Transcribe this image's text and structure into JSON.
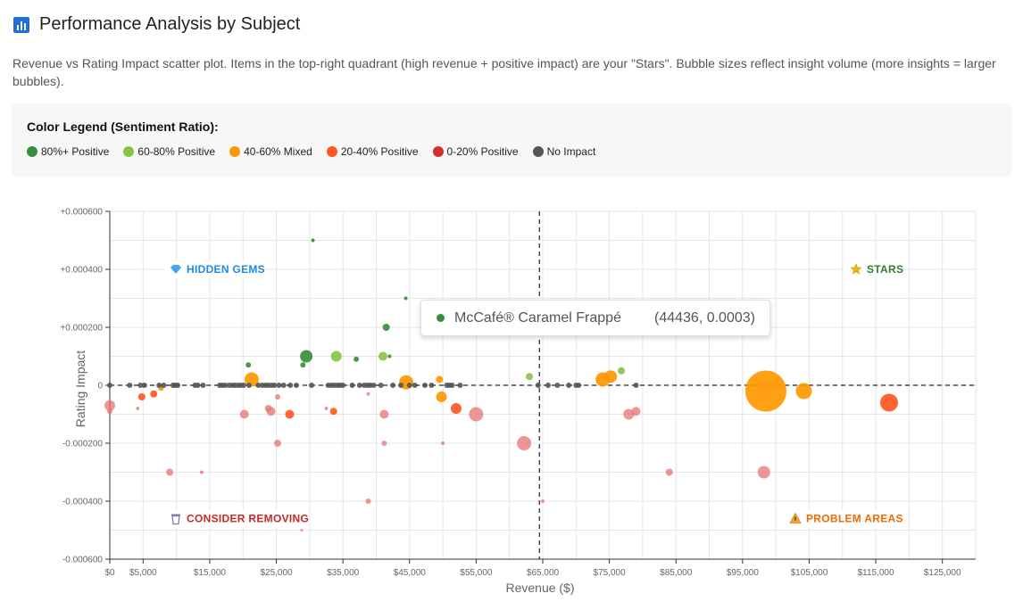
{
  "header": {
    "title": "Performance Analysis by Subject",
    "icon": "bar-chart-icon"
  },
  "description": "Revenue vs Rating Impact scatter plot. Items in the top-right quadrant (high revenue + positive impact) are your \"Stars\". Bubble sizes reflect insight volume (more insights = larger bubbles).",
  "legend": {
    "title": "Color Legend (Sentiment Ratio):",
    "items": [
      {
        "label": "80%+ Positive",
        "color": "#388e3c"
      },
      {
        "label": "60-80% Positive",
        "color": "#8bc34a"
      },
      {
        "label": "40-60% Mixed",
        "color": "#ff9800"
      },
      {
        "label": "20-40% Positive",
        "color": "#ff5722"
      },
      {
        "label": "0-20% Positive",
        "color": "#d32f2f"
      },
      {
        "label": "No Impact",
        "color": "#555555"
      }
    ]
  },
  "quadrants": {
    "top_left": {
      "label": "HIDDEN GEMS",
      "icon": "gem-icon",
      "color": "#1e88e5"
    },
    "top_right": {
      "label": "STARS",
      "icon": "star-icon",
      "color": "#2e7d32"
    },
    "bottom_left": {
      "label": "CONSIDER REMOVING",
      "icon": "wastebasket-icon",
      "color": "#c62828"
    },
    "bottom_right": {
      "label": "PROBLEM AREAS",
      "icon": "warning-icon",
      "color": "#ef6c00"
    }
  },
  "tooltip": {
    "label": "McCafé® Caramel Frappé",
    "value": "(44436, 0.0003)",
    "color": "#388e3c"
  },
  "chart_data": {
    "type": "scatter",
    "title": "",
    "xlabel": "Revenue ($)",
    "ylabel": "Rating Impact",
    "xlim": [
      0,
      130000
    ],
    "ylim": [
      -0.0006,
      0.0006
    ],
    "x_ticks": [
      0,
      5000,
      15000,
      25000,
      35000,
      45000,
      55000,
      65000,
      75000,
      85000,
      95000,
      105000,
      115000,
      125000
    ],
    "x_tick_labels": [
      "$0",
      "$5,000",
      "$15,000",
      "$25,000",
      "$35,000",
      "$45,000",
      "$55,000",
      "$65,000",
      "$75,000",
      "$85,000",
      "$95,000",
      "$105,000",
      "$115,000",
      "$125,000"
    ],
    "y_ticks": [
      0.0006,
      0.0004,
      0.0002,
      0,
      -0.0002,
      -0.0004,
      -0.0006
    ],
    "y_tick_labels": [
      "+0.000600",
      "+0.000400",
      "+0.000200",
      "0",
      "-0.000200",
      "-0.000400",
      "-0.000600"
    ],
    "grid": true,
    "reference_lines": {
      "x": 64500,
      "y": 0
    },
    "color_key": {
      "g": "#388e3c",
      "lg": "#8bc34a",
      "o": "#ff9800",
      "r": "#ff5722",
      "pink": "#e57373",
      "gray": "#555555"
    },
    "points": [
      {
        "x": 30500,
        "y": 0.0005,
        "size": 2,
        "c": "g"
      },
      {
        "x": 44436,
        "y": 0.0003,
        "size": 2,
        "c": "g"
      },
      {
        "x": 41500,
        "y": 0.0002,
        "size": 4,
        "c": "g"
      },
      {
        "x": 20800,
        "y": 7e-05,
        "size": 3,
        "c": "g"
      },
      {
        "x": 29500,
        "y": 0.0001,
        "size": 7,
        "c": "g"
      },
      {
        "x": 29000,
        "y": 7e-05,
        "size": 3,
        "c": "g"
      },
      {
        "x": 37000,
        "y": 9e-05,
        "size": 3,
        "c": "g"
      },
      {
        "x": 42000,
        "y": 0.0001,
        "size": 2,
        "c": "g"
      },
      {
        "x": 34000,
        "y": 0.0001,
        "size": 6,
        "c": "lg"
      },
      {
        "x": 41000,
        "y": 0.0001,
        "size": 5,
        "c": "lg"
      },
      {
        "x": 63000,
        "y": 3e-05,
        "size": 4,
        "c": "lg"
      },
      {
        "x": 76800,
        "y": 5e-05,
        "size": 4,
        "c": "lg"
      },
      {
        "x": 21300,
        "y": 2e-05,
        "size": 8,
        "c": "o"
      },
      {
        "x": 44500,
        "y": 1e-05,
        "size": 8,
        "c": "o"
      },
      {
        "x": 49500,
        "y": 2e-05,
        "size": 4,
        "c": "o"
      },
      {
        "x": 49800,
        "y": -4e-05,
        "size": 6,
        "c": "o"
      },
      {
        "x": 74000,
        "y": 2e-05,
        "size": 8,
        "c": "o"
      },
      {
        "x": 75200,
        "y": 3e-05,
        "size": 7,
        "c": "o"
      },
      {
        "x": 98500,
        "y": -2e-05,
        "size": 23,
        "c": "o"
      },
      {
        "x": 104200,
        "y": -2e-05,
        "size": 9,
        "c": "o"
      },
      {
        "x": 7700,
        "y": -1e-05,
        "size": 3,
        "c": "o"
      },
      {
        "x": 4800,
        "y": -4e-05,
        "size": 4,
        "c": "r"
      },
      {
        "x": 6600,
        "y": -3e-05,
        "size": 4,
        "c": "r"
      },
      {
        "x": 27000,
        "y": -0.0001,
        "size": 5,
        "c": "r"
      },
      {
        "x": 33600,
        "y": -9e-05,
        "size": 4,
        "c": "r"
      },
      {
        "x": 52000,
        "y": -8e-05,
        "size": 6,
        "c": "r"
      },
      {
        "x": 117000,
        "y": -6e-05,
        "size": 10,
        "c": "r"
      },
      {
        "x": 0,
        "y": -7e-05,
        "size": 6,
        "c": "pink"
      },
      {
        "x": 0,
        "y": -9e-05,
        "size": 3,
        "c": "pink"
      },
      {
        "x": 4200,
        "y": -8e-05,
        "size": 2,
        "c": "pink"
      },
      {
        "x": 20200,
        "y": -0.0001,
        "size": 5,
        "c": "pink"
      },
      {
        "x": 23800,
        "y": -8e-05,
        "size": 4,
        "c": "pink"
      },
      {
        "x": 24200,
        "y": -9e-05,
        "size": 5,
        "c": "pink"
      },
      {
        "x": 25200,
        "y": -4e-05,
        "size": 3,
        "c": "pink"
      },
      {
        "x": 32500,
        "y": -8e-05,
        "size": 2,
        "c": "pink"
      },
      {
        "x": 38800,
        "y": -3e-05,
        "size": 2,
        "c": "pink"
      },
      {
        "x": 41200,
        "y": -0.0001,
        "size": 5,
        "c": "pink"
      },
      {
        "x": 55000,
        "y": -0.0001,
        "size": 8,
        "c": "pink"
      },
      {
        "x": 25200,
        "y": -0.0002,
        "size": 4,
        "c": "pink"
      },
      {
        "x": 41200,
        "y": -0.0002,
        "size": 3,
        "c": "pink"
      },
      {
        "x": 50000,
        "y": -0.0002,
        "size": 2,
        "c": "pink"
      },
      {
        "x": 62200,
        "y": -0.0002,
        "size": 8,
        "c": "pink"
      },
      {
        "x": 77900,
        "y": -0.0001,
        "size": 6,
        "c": "pink"
      },
      {
        "x": 79000,
        "y": -9e-05,
        "size": 5,
        "c": "pink"
      },
      {
        "x": 9000,
        "y": -0.0003,
        "size": 4,
        "c": "pink"
      },
      {
        "x": 13800,
        "y": -0.0003,
        "size": 2,
        "c": "pink"
      },
      {
        "x": 84000,
        "y": -0.0003,
        "size": 4,
        "c": "pink"
      },
      {
        "x": 98200,
        "y": -0.0003,
        "size": 7,
        "c": "pink"
      },
      {
        "x": 38800,
        "y": -0.0004,
        "size": 3,
        "c": "pink"
      },
      {
        "x": 65000,
        "y": -0.0004,
        "size": 2,
        "c": "pink"
      },
      {
        "x": 28800,
        "y": -0.0005,
        "size": 1,
        "c": "pink"
      }
    ],
    "no_impact_x": [
      0,
      3000,
      4600,
      5200,
      7400,
      8100,
      9500,
      9800,
      10200,
      12800,
      13200,
      14000,
      16500,
      16900,
      17300,
      17900,
      18400,
      18800,
      19300,
      19700,
      20100,
      20900,
      22300,
      22900,
      23400,
      23800,
      24300,
      24700,
      25400,
      26100,
      27100,
      28000,
      30300,
      32800,
      33300,
      33700,
      34200,
      34600,
      35000,
      36400,
      37500,
      38200,
      38700,
      39100,
      39600,
      40700,
      42500,
      43700,
      45000,
      45800,
      47300,
      48300,
      50600,
      51000,
      51400,
      52600,
      64300,
      65800,
      67200,
      68900,
      70000,
      70400,
      79000
    ]
  }
}
